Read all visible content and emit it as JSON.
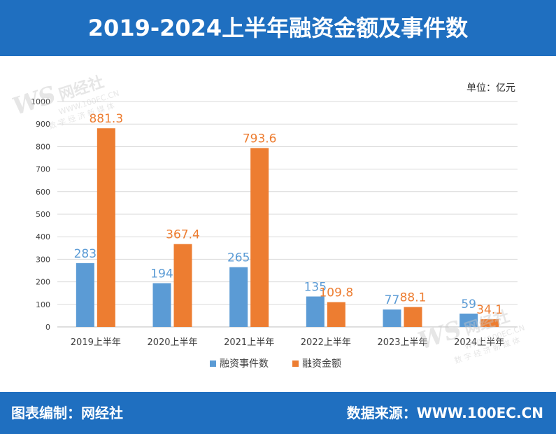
{
  "header": {
    "title": "2019-2024上半年融资金额及事件数"
  },
  "unit_label": "单位：亿元",
  "footer": {
    "left": "图表编制：网经社",
    "right": "数据来源：WWW.100EC.CN"
  },
  "watermark": {
    "logo": "WS",
    "name": "网经社",
    "url": "WWW.100EC.CN",
    "tagline": "数 字 经 济 新 媒 体"
  },
  "colors": {
    "header_bg": "#1f6fc0",
    "series_count": "#5b9bd5",
    "series_amount": "#ed7d31",
    "grid": "#d9d9d9",
    "axis": "#bfbfbf"
  },
  "chart_data": {
    "type": "bar",
    "title": "2019-2024上半年融资金额及事件数",
    "xlabel": "",
    "ylabel": "单位：亿元",
    "ylim": [
      0,
      1000
    ],
    "yticks": [
      0,
      100,
      200,
      300,
      400,
      500,
      600,
      700,
      800,
      900,
      1000
    ],
    "grid": true,
    "legend_position": "bottom",
    "categories": [
      "2019上半年",
      "2020上半年",
      "2021上半年",
      "2022上半年",
      "2023上半年",
      "2024上半年"
    ],
    "series": [
      {
        "name": "融资事件数",
        "values": [
          283,
          194,
          265,
          135,
          77,
          59
        ],
        "labels": [
          "283",
          "194",
          "265",
          "135",
          "77",
          "59"
        ],
        "color": "#5b9bd5"
      },
      {
        "name": "融资金额",
        "values": [
          881.3,
          367.4,
          793.6,
          109.8,
          88.1,
          34.1
        ],
        "labels": [
          "881.3",
          "367.4",
          "793.6",
          "109.8",
          "88.1",
          "34.1"
        ],
        "color": "#ed7d31"
      }
    ]
  }
}
